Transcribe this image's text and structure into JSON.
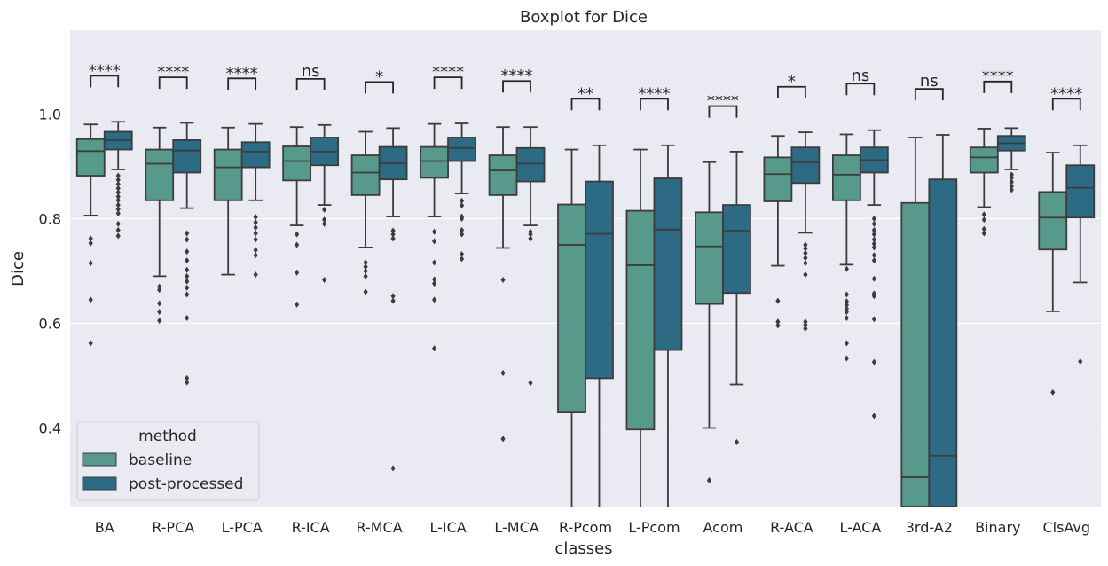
{
  "chart_data": {
    "type": "box",
    "title": "Boxplot for Dice",
    "xlabel": "classes",
    "ylabel": "Dice",
    "ylim": [
      0.25,
      1.16
    ],
    "yticks": [
      0.4,
      0.6,
      0.8,
      1.0
    ],
    "ytick_labels": [
      "0.4",
      "0.6",
      "0.8",
      "1.0"
    ],
    "grid": true,
    "legend": {
      "title": "method",
      "position": "bottom-left"
    },
    "series": [
      {
        "name": "baseline",
        "color": "#579a8c"
      },
      {
        "name": "post-processed",
        "color": "#2d6a84"
      }
    ],
    "categories": [
      "BA",
      "R-PCA",
      "L-PCA",
      "R-ICA",
      "R-MCA",
      "L-ICA",
      "L-MCA",
      "R-Pcom",
      "L-Pcom",
      "Acom",
      "R-ACA",
      "L-ACA",
      "3rd-A2",
      "Binary",
      "ClsAvg"
    ],
    "boxes": [
      [
        {
          "whislo": 0.806,
          "q1": 0.882,
          "med": 0.929,
          "q3": 0.952,
          "whishi": 0.98,
          "fliers": [
            0.562,
            0.645,
            0.715,
            0.753,
            0.762
          ]
        },
        {
          "whislo": 0.894,
          "q1": 0.932,
          "med": 0.95,
          "q3": 0.966,
          "whishi": 0.985,
          "fliers": [
            0.767,
            0.778,
            0.79,
            0.81,
            0.818,
            0.826,
            0.835,
            0.842,
            0.85,
            0.858,
            0.866,
            0.874,
            0.882
          ]
        }
      ],
      [
        {
          "whislo": 0.69,
          "q1": 0.835,
          "med": 0.905,
          "q3": 0.932,
          "whishi": 0.974,
          "fliers": [
            0.605,
            0.622,
            0.638,
            0.664,
            0.67
          ]
        },
        {
          "whislo": 0.82,
          "q1": 0.888,
          "med": 0.93,
          "q3": 0.95,
          "whishi": 0.983,
          "fliers": [
            0.487,
            0.495,
            0.61,
            0.655,
            0.668,
            0.68,
            0.69,
            0.702,
            0.72,
            0.737,
            0.76,
            0.772
          ]
        }
      ],
      [
        {
          "whislo": 0.693,
          "q1": 0.835,
          "med": 0.898,
          "q3": 0.932,
          "whishi": 0.974,
          "fliers": []
        },
        {
          "whislo": 0.835,
          "q1": 0.898,
          "med": 0.928,
          "q3": 0.946,
          "whishi": 0.981,
          "fliers": [
            0.693,
            0.73,
            0.74,
            0.76,
            0.772,
            0.783,
            0.793,
            0.803
          ]
        }
      ],
      [
        {
          "whislo": 0.787,
          "q1": 0.873,
          "med": 0.91,
          "q3": 0.938,
          "whishi": 0.975,
          "fliers": [
            0.636,
            0.697,
            0.75,
            0.77
          ]
        },
        {
          "whislo": 0.826,
          "q1": 0.902,
          "med": 0.928,
          "q3": 0.955,
          "whishi": 0.979,
          "fliers": [
            0.683,
            0.79,
            0.798,
            0.817
          ]
        }
      ],
      [
        {
          "whislo": 0.745,
          "q1": 0.845,
          "med": 0.888,
          "q3": 0.921,
          "whishi": 0.966,
          "fliers": [
            0.66,
            0.69,
            0.7,
            0.708,
            0.716
          ]
        },
        {
          "whislo": 0.804,
          "q1": 0.875,
          "med": 0.906,
          "q3": 0.937,
          "whishi": 0.973,
          "fliers": [
            0.323,
            0.643,
            0.652,
            0.762,
            0.77,
            0.777
          ]
        }
      ],
      [
        {
          "whislo": 0.804,
          "q1": 0.878,
          "med": 0.91,
          "q3": 0.937,
          "whishi": 0.981,
          "fliers": [
            0.552,
            0.645,
            0.676,
            0.684,
            0.716,
            0.757,
            0.775
          ]
        },
        {
          "whislo": 0.848,
          "q1": 0.91,
          "med": 0.935,
          "q3": 0.955,
          "whishi": 0.982,
          "fliers": [
            0.723,
            0.732,
            0.77,
            0.778,
            0.8,
            0.804,
            0.825,
            0.834
          ]
        }
      ],
      [
        {
          "whislo": 0.744,
          "q1": 0.845,
          "med": 0.892,
          "q3": 0.921,
          "whishi": 0.975,
          "fliers": [
            0.379,
            0.505,
            0.683
          ]
        },
        {
          "whislo": 0.787,
          "q1": 0.871,
          "med": 0.905,
          "q3": 0.935,
          "whishi": 0.975,
          "fliers": [
            0.486,
            0.762,
            0.77,
            0.775
          ]
        }
      ],
      [
        {
          "whislo": 0.0,
          "q1": 0.431,
          "med": 0.75,
          "q3": 0.827,
          "whishi": 0.932,
          "fliers": []
        },
        {
          "whislo": 0.0,
          "q1": 0.495,
          "med": 0.771,
          "q3": 0.871,
          "whishi": 0.94,
          "fliers": []
        }
      ],
      [
        {
          "whislo": 0.0,
          "q1": 0.397,
          "med": 0.711,
          "q3": 0.815,
          "whishi": 0.932,
          "fliers": []
        },
        {
          "whislo": 0.0,
          "q1": 0.549,
          "med": 0.779,
          "q3": 0.877,
          "whishi": 0.94,
          "fliers": []
        }
      ],
      [
        {
          "whislo": 0.4,
          "q1": 0.637,
          "med": 0.747,
          "q3": 0.812,
          "whishi": 0.908,
          "fliers": [
            0.3
          ]
        },
        {
          "whislo": 0.483,
          "q1": 0.658,
          "med": 0.777,
          "q3": 0.826,
          "whishi": 0.928,
          "fliers": [
            0.373
          ]
        }
      ],
      [
        {
          "whislo": 0.71,
          "q1": 0.833,
          "med": 0.885,
          "q3": 0.917,
          "whishi": 0.958,
          "fliers": [
            0.596,
            0.603,
            0.643
          ]
        },
        {
          "whislo": 0.773,
          "q1": 0.868,
          "med": 0.908,
          "q3": 0.936,
          "whishi": 0.965,
          "fliers": [
            0.59,
            0.597,
            0.603,
            0.693,
            0.715,
            0.725,
            0.734,
            0.743,
            0.75
          ]
        }
      ],
      [
        {
          "whislo": 0.712,
          "q1": 0.835,
          "med": 0.884,
          "q3": 0.921,
          "whishi": 0.961,
          "fliers": [
            0.533,
            0.562,
            0.61,
            0.622,
            0.628,
            0.635,
            0.642,
            0.655,
            0.704
          ]
        },
        {
          "whislo": 0.826,
          "q1": 0.888,
          "med": 0.912,
          "q3": 0.936,
          "whishi": 0.969,
          "fliers": [
            0.423,
            0.526,
            0.608,
            0.652,
            0.657,
            0.685,
            0.72,
            0.73,
            0.745,
            0.752,
            0.76,
            0.77,
            0.778,
            0.79,
            0.8
          ]
        }
      ],
      [
        {
          "whislo": 0.0,
          "q1": 0.0,
          "med": 0.306,
          "q3": 0.83,
          "whishi": 0.955,
          "fliers": []
        },
        {
          "whislo": 0.0,
          "q1": 0.0,
          "med": 0.347,
          "q3": 0.875,
          "whishi": 0.96,
          "fliers": []
        }
      ],
      [
        {
          "whislo": 0.822,
          "q1": 0.888,
          "med": 0.917,
          "q3": 0.936,
          "whishi": 0.972,
          "fliers": [
            0.772,
            0.78,
            0.798,
            0.808
          ]
        },
        {
          "whislo": 0.894,
          "q1": 0.93,
          "med": 0.944,
          "q3": 0.958,
          "whishi": 0.973,
          "fliers": [
            0.855,
            0.862,
            0.87,
            0.878,
            0.884
          ]
        }
      ],
      [
        {
          "whislo": 0.623,
          "q1": 0.741,
          "med": 0.802,
          "q3": 0.851,
          "whishi": 0.926,
          "fliers": [
            0.468
          ]
        },
        {
          "whislo": 0.678,
          "q1": 0.802,
          "med": 0.859,
          "q3": 0.902,
          "whishi": 0.94,
          "fliers": [
            0.527
          ]
        }
      ]
    ],
    "annotations": [
      {
        "category": "BA",
        "text": "****",
        "level": 1.073
      },
      {
        "category": "R-PCA",
        "text": "****",
        "level": 1.07
      },
      {
        "category": "L-PCA",
        "text": "****",
        "level": 1.068
      },
      {
        "category": "R-ICA",
        "text": "ns",
        "level": 1.067
      },
      {
        "category": "R-MCA",
        "text": "*",
        "level": 1.061
      },
      {
        "category": "L-ICA",
        "text": "****",
        "level": 1.07
      },
      {
        "category": "L-MCA",
        "text": "****",
        "level": 1.063
      },
      {
        "category": "R-Pcom",
        "text": "**",
        "level": 1.029
      },
      {
        "category": "L-Pcom",
        "text": "****",
        "level": 1.029
      },
      {
        "category": "Acom",
        "text": "****",
        "level": 1.015
      },
      {
        "category": "R-ACA",
        "text": "*",
        "level": 1.052
      },
      {
        "category": "L-ACA",
        "text": "ns",
        "level": 1.058
      },
      {
        "category": "3rd-A2",
        "text": "ns",
        "level": 1.048
      },
      {
        "category": "Binary",
        "text": "****",
        "level": 1.062
      },
      {
        "category": "ClsAvg",
        "text": "****",
        "level": 1.029
      }
    ]
  }
}
